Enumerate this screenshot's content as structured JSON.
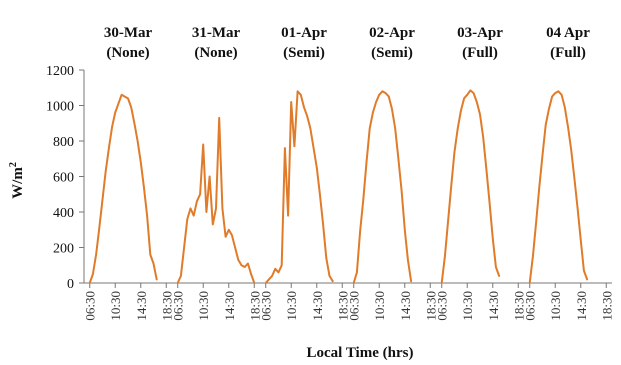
{
  "chart_data": {
    "type": "line",
    "ylabel": "W/m",
    "ylabel_superscript": "2",
    "xlabel": "Local Time (hrs)",
    "ylim": [
      0,
      1200
    ],
    "yticks": [
      "0",
      "200",
      "400",
      "600",
      "800",
      "1000",
      "1200"
    ],
    "xtick_labels": [
      "06:30",
      "10:30",
      "14:30",
      "18:30"
    ],
    "grid": false,
    "line_color": "#E07B2A",
    "days": [
      {
        "date": "30-Mar",
        "condition": "(None)",
        "values": [
          [
            6.5,
            0
          ],
          [
            7,
            50
          ],
          [
            7.5,
            160
          ],
          [
            8,
            310
          ],
          [
            8.5,
            470
          ],
          [
            9,
            630
          ],
          [
            9.5,
            760
          ],
          [
            10,
            880
          ],
          [
            10.5,
            960
          ],
          [
            11,
            1010
          ],
          [
            11.5,
            1060
          ],
          [
            12,
            1050
          ],
          [
            12.5,
            1040
          ],
          [
            13,
            990
          ],
          [
            13.5,
            900
          ],
          [
            14,
            800
          ],
          [
            14.5,
            680
          ],
          [
            15,
            540
          ],
          [
            15.5,
            380
          ],
          [
            16,
            160
          ],
          [
            16.5,
            110
          ],
          [
            17,
            20
          ]
        ]
      },
      {
        "date": "31-Mar",
        "condition": "(None)",
        "values": [
          [
            6.5,
            0
          ],
          [
            7,
            40
          ],
          [
            7.5,
            200
          ],
          [
            8,
            360
          ],
          [
            8.5,
            420
          ],
          [
            9,
            380
          ],
          [
            9.5,
            460
          ],
          [
            10,
            500
          ],
          [
            10.5,
            780
          ],
          [
            11,
            400
          ],
          [
            11.5,
            600
          ],
          [
            12,
            330
          ],
          [
            12.5,
            420
          ],
          [
            13,
            930
          ],
          [
            13.5,
            420
          ],
          [
            14,
            260
          ],
          [
            14.5,
            300
          ],
          [
            15,
            270
          ],
          [
            15.5,
            200
          ],
          [
            16,
            130
          ],
          [
            16.5,
            100
          ],
          [
            17,
            90
          ],
          [
            17.5,
            110
          ],
          [
            18,
            50
          ],
          [
            18.5,
            0
          ]
        ]
      },
      {
        "date": "01-Apr",
        "condition": "(Semi)",
        "values": [
          [
            6.5,
            0
          ],
          [
            7,
            20
          ],
          [
            7.5,
            40
          ],
          [
            8,
            80
          ],
          [
            8.5,
            60
          ],
          [
            9,
            100
          ],
          [
            9.5,
            760
          ],
          [
            10,
            380
          ],
          [
            10.5,
            1020
          ],
          [
            11,
            770
          ],
          [
            11.5,
            1080
          ],
          [
            12,
            1060
          ],
          [
            12.5,
            990
          ],
          [
            13,
            940
          ],
          [
            13.5,
            870
          ],
          [
            14,
            760
          ],
          [
            14.5,
            650
          ],
          [
            15,
            500
          ],
          [
            15.5,
            330
          ],
          [
            16,
            140
          ],
          [
            16.5,
            40
          ],
          [
            17,
            10
          ]
        ]
      },
      {
        "date": "02-Apr",
        "condition": "(Semi)",
        "values": [
          [
            6.5,
            0
          ],
          [
            7,
            60
          ],
          [
            7.5,
            290
          ],
          [
            8,
            470
          ],
          [
            8.5,
            680
          ],
          [
            9,
            870
          ],
          [
            9.5,
            960
          ],
          [
            10,
            1020
          ],
          [
            10.5,
            1060
          ],
          [
            11,
            1080
          ],
          [
            11.5,
            1070
          ],
          [
            12,
            1050
          ],
          [
            12.5,
            980
          ],
          [
            13,
            870
          ],
          [
            13.5,
            700
          ],
          [
            14,
            520
          ],
          [
            14.5,
            300
          ],
          [
            15,
            130
          ],
          [
            15.5,
            10
          ]
        ]
      },
      {
        "date": "03-Apr",
        "condition": "(Full)",
        "values": [
          [
            6.5,
            0
          ],
          [
            7,
            150
          ],
          [
            7.5,
            350
          ],
          [
            8,
            550
          ],
          [
            8.5,
            740
          ],
          [
            9,
            870
          ],
          [
            9.5,
            970
          ],
          [
            10,
            1040
          ],
          [
            10.5,
            1060
          ],
          [
            11,
            1085
          ],
          [
            11.5,
            1070
          ],
          [
            12,
            1020
          ],
          [
            12.5,
            950
          ],
          [
            13,
            820
          ],
          [
            13.5,
            640
          ],
          [
            14,
            450
          ],
          [
            14.5,
            250
          ],
          [
            15,
            90
          ],
          [
            15.5,
            40
          ]
        ]
      },
      {
        "date": "04 Apr",
        "condition": "(Full)",
        "values": [
          [
            6.5,
            0
          ],
          [
            7,
            150
          ],
          [
            7.5,
            340
          ],
          [
            8,
            540
          ],
          [
            8.5,
            720
          ],
          [
            9,
            890
          ],
          [
            9.5,
            980
          ],
          [
            10,
            1050
          ],
          [
            10.5,
            1070
          ],
          [
            11,
            1080
          ],
          [
            11.5,
            1060
          ],
          [
            12,
            990
          ],
          [
            12.5,
            880
          ],
          [
            13,
            750
          ],
          [
            13.5,
            590
          ],
          [
            14,
            420
          ],
          [
            14.5,
            240
          ],
          [
            15,
            70
          ],
          [
            15.5,
            20
          ]
        ]
      }
    ]
  }
}
